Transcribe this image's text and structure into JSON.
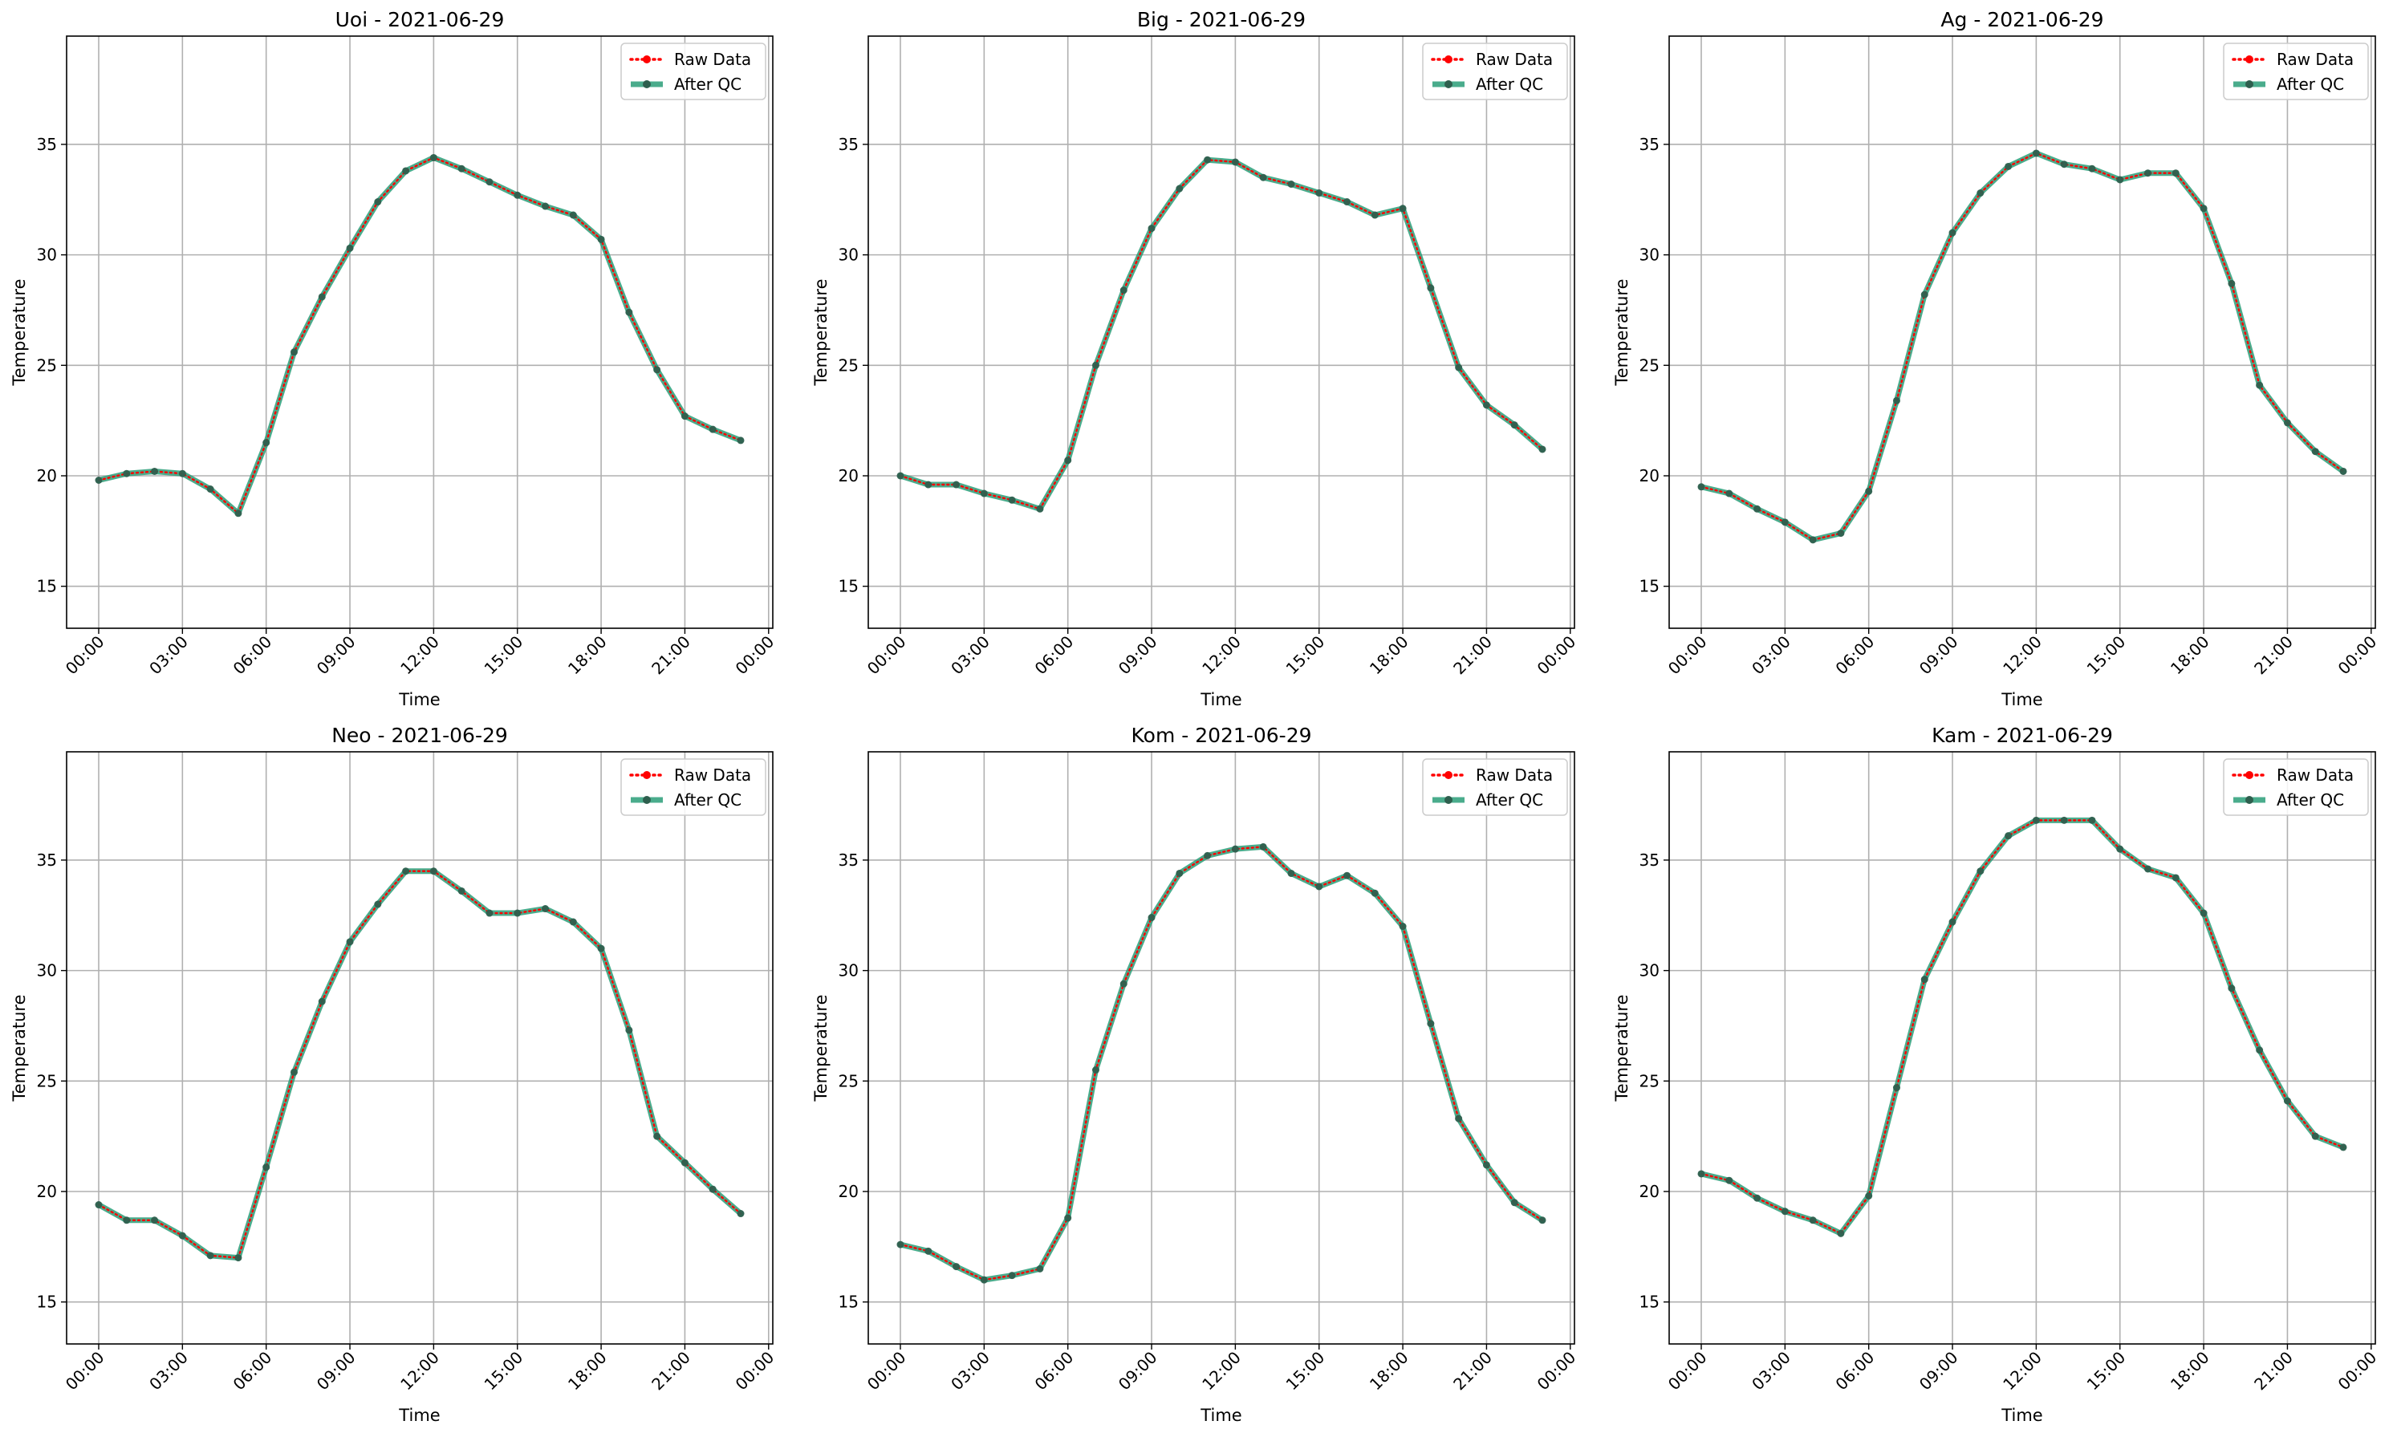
{
  "chart_data": [
    {
      "type": "line",
      "title": "Uoi - 2021-06-29",
      "xlabel": "Time",
      "ylabel": "Temperature",
      "x": [
        "00:00",
        "01:00",
        "02:00",
        "03:00",
        "04:00",
        "05:00",
        "06:00",
        "07:00",
        "08:00",
        "09:00",
        "10:00",
        "11:00",
        "12:00",
        "13:00",
        "14:00",
        "15:00",
        "16:00",
        "17:00",
        "18:00",
        "19:00",
        "20:00",
        "21:00",
        "22:00",
        "23:00"
      ],
      "xticks": [
        "00:00",
        "03:00",
        "06:00",
        "09:00",
        "12:00",
        "15:00",
        "18:00",
        "21:00",
        "00:00"
      ],
      "yticks": [
        "15",
        "20",
        "25",
        "30",
        "35"
      ],
      "ylim": [
        13.1,
        39.9
      ],
      "grid": true,
      "legend_position": "top-right",
      "series": [
        {
          "name": "Raw Data",
          "color": "#ff0000",
          "style": "dotted",
          "values": [
            19.8,
            20.1,
            20.2,
            20.1,
            19.4,
            18.3,
            21.5,
            25.6,
            28.1,
            30.3,
            32.4,
            33.8,
            34.4,
            33.9,
            33.3,
            32.7,
            32.2,
            31.8,
            30.7,
            27.4,
            24.8,
            22.7,
            22.1,
            21.6
          ]
        },
        {
          "name": "After QC",
          "color": "#2a9d78",
          "style": "solid",
          "values": [
            19.8,
            20.1,
            20.2,
            20.1,
            19.4,
            18.3,
            21.5,
            25.6,
            28.1,
            30.3,
            32.4,
            33.8,
            34.4,
            33.9,
            33.3,
            32.7,
            32.2,
            31.8,
            30.7,
            27.4,
            24.8,
            22.7,
            22.1,
            21.6
          ]
        }
      ]
    },
    {
      "type": "line",
      "title": "Big - 2021-06-29",
      "xlabel": "Time",
      "ylabel": "Temperature",
      "x": [
        "00:00",
        "01:00",
        "02:00",
        "03:00",
        "04:00",
        "05:00",
        "06:00",
        "07:00",
        "08:00",
        "09:00",
        "10:00",
        "11:00",
        "12:00",
        "13:00",
        "14:00",
        "15:00",
        "16:00",
        "17:00",
        "18:00",
        "19:00",
        "20:00",
        "21:00",
        "22:00",
        "23:00"
      ],
      "xticks": [
        "00:00",
        "03:00",
        "06:00",
        "09:00",
        "12:00",
        "15:00",
        "18:00",
        "21:00",
        "00:00"
      ],
      "yticks": [
        "15",
        "20",
        "25",
        "30",
        "35"
      ],
      "ylim": [
        13.1,
        39.9
      ],
      "grid": true,
      "legend_position": "top-right",
      "series": [
        {
          "name": "Raw Data",
          "color": "#ff0000",
          "style": "dotted",
          "values": [
            20.0,
            19.6,
            19.6,
            19.2,
            18.9,
            18.5,
            20.7,
            25.0,
            28.4,
            31.2,
            33.0,
            34.3,
            34.2,
            33.5,
            33.2,
            32.8,
            32.4,
            31.8,
            32.1,
            28.5,
            24.9,
            23.2,
            22.3,
            21.2
          ]
        },
        {
          "name": "After QC",
          "color": "#2a9d78",
          "style": "solid",
          "values": [
            20.0,
            19.6,
            19.6,
            19.2,
            18.9,
            18.5,
            20.7,
            25.0,
            28.4,
            31.2,
            33.0,
            34.3,
            34.2,
            33.5,
            33.2,
            32.8,
            32.4,
            31.8,
            32.1,
            28.5,
            24.9,
            23.2,
            22.3,
            21.2
          ]
        }
      ]
    },
    {
      "type": "line",
      "title": "Ag - 2021-06-29",
      "xlabel": "Time",
      "ylabel": "Temperature",
      "x": [
        "00:00",
        "01:00",
        "02:00",
        "03:00",
        "04:00",
        "05:00",
        "06:00",
        "07:00",
        "08:00",
        "09:00",
        "10:00",
        "11:00",
        "12:00",
        "13:00",
        "14:00",
        "15:00",
        "16:00",
        "17:00",
        "18:00",
        "19:00",
        "20:00",
        "21:00",
        "22:00",
        "23:00"
      ],
      "xticks": [
        "00:00",
        "03:00",
        "06:00",
        "09:00",
        "12:00",
        "15:00",
        "18:00",
        "21:00",
        "00:00"
      ],
      "yticks": [
        "15",
        "20",
        "25",
        "30",
        "35"
      ],
      "ylim": [
        13.1,
        39.9
      ],
      "grid": true,
      "legend_position": "top-right",
      "series": [
        {
          "name": "Raw Data",
          "color": "#ff0000",
          "style": "dotted",
          "values": [
            19.5,
            19.2,
            18.5,
            17.9,
            17.1,
            17.4,
            19.3,
            23.4,
            28.2,
            31.0,
            32.8,
            34.0,
            34.6,
            34.1,
            33.9,
            33.4,
            33.7,
            33.7,
            32.1,
            28.7,
            24.1,
            22.4,
            21.1,
            20.2
          ]
        },
        {
          "name": "After QC",
          "color": "#2a9d78",
          "style": "solid",
          "values": [
            19.5,
            19.2,
            18.5,
            17.9,
            17.1,
            17.4,
            19.3,
            23.4,
            28.2,
            31.0,
            32.8,
            34.0,
            34.6,
            34.1,
            33.9,
            33.4,
            33.7,
            33.7,
            32.1,
            28.7,
            24.1,
            22.4,
            21.1,
            20.2
          ]
        }
      ]
    },
    {
      "type": "line",
      "title": "Neo - 2021-06-29",
      "xlabel": "Time",
      "ylabel": "Temperature",
      "x": [
        "00:00",
        "01:00",
        "02:00",
        "03:00",
        "04:00",
        "05:00",
        "06:00",
        "07:00",
        "08:00",
        "09:00",
        "10:00",
        "11:00",
        "12:00",
        "13:00",
        "14:00",
        "15:00",
        "16:00",
        "17:00",
        "18:00",
        "19:00",
        "20:00",
        "21:00",
        "22:00",
        "23:00"
      ],
      "xticks": [
        "00:00",
        "03:00",
        "06:00",
        "09:00",
        "12:00",
        "15:00",
        "18:00",
        "21:00",
        "00:00"
      ],
      "yticks": [
        "15",
        "20",
        "25",
        "30",
        "35"
      ],
      "ylim": [
        13.1,
        39.9
      ],
      "grid": true,
      "legend_position": "top-right",
      "series": [
        {
          "name": "Raw Data",
          "color": "#ff0000",
          "style": "dotted",
          "values": [
            19.4,
            18.7,
            18.7,
            18.0,
            17.1,
            17.0,
            21.1,
            25.4,
            28.6,
            31.3,
            33.0,
            34.5,
            34.5,
            33.6,
            32.6,
            32.6,
            32.8,
            32.2,
            31.0,
            27.3,
            22.5,
            21.3,
            20.1,
            19.0
          ]
        },
        {
          "name": "After QC",
          "color": "#2a9d78",
          "style": "solid",
          "values": [
            19.4,
            18.7,
            18.7,
            18.0,
            17.1,
            17.0,
            21.1,
            25.4,
            28.6,
            31.3,
            33.0,
            34.5,
            34.5,
            33.6,
            32.6,
            32.6,
            32.8,
            32.2,
            31.0,
            27.3,
            22.5,
            21.3,
            20.1,
            19.0
          ]
        }
      ]
    },
    {
      "type": "line",
      "title": "Kom - 2021-06-29",
      "xlabel": "Time",
      "ylabel": "Temperature",
      "x": [
        "00:00",
        "01:00",
        "02:00",
        "03:00",
        "04:00",
        "05:00",
        "06:00",
        "07:00",
        "08:00",
        "09:00",
        "10:00",
        "11:00",
        "12:00",
        "13:00",
        "14:00",
        "15:00",
        "16:00",
        "17:00",
        "18:00",
        "19:00",
        "20:00",
        "21:00",
        "22:00",
        "23:00"
      ],
      "xticks": [
        "00:00",
        "03:00",
        "06:00",
        "09:00",
        "12:00",
        "15:00",
        "18:00",
        "21:00",
        "00:00"
      ],
      "yticks": [
        "15",
        "20",
        "25",
        "30",
        "35"
      ],
      "ylim": [
        13.1,
        39.9
      ],
      "grid": true,
      "legend_position": "top-right",
      "series": [
        {
          "name": "Raw Data",
          "color": "#ff0000",
          "style": "dotted",
          "values": [
            17.6,
            17.3,
            16.6,
            16.0,
            16.2,
            16.5,
            18.8,
            25.5,
            29.4,
            32.4,
            34.4,
            35.2,
            35.5,
            35.6,
            34.4,
            33.8,
            34.3,
            33.5,
            32.0,
            27.6,
            23.3,
            21.2,
            19.5,
            18.7
          ]
        },
        {
          "name": "After QC",
          "color": "#2a9d78",
          "style": "solid",
          "values": [
            17.6,
            17.3,
            16.6,
            16.0,
            16.2,
            16.5,
            18.8,
            25.5,
            29.4,
            32.4,
            34.4,
            35.2,
            35.5,
            35.6,
            34.4,
            33.8,
            34.3,
            33.5,
            32.0,
            27.6,
            23.3,
            21.2,
            19.5,
            18.7
          ]
        }
      ]
    },
    {
      "type": "line",
      "title": "Kam - 2021-06-29",
      "xlabel": "Time",
      "ylabel": "Temperature",
      "x": [
        "00:00",
        "01:00",
        "02:00",
        "03:00",
        "04:00",
        "05:00",
        "06:00",
        "07:00",
        "08:00",
        "09:00",
        "10:00",
        "11:00",
        "12:00",
        "13:00",
        "14:00",
        "15:00",
        "16:00",
        "17:00",
        "18:00",
        "19:00",
        "20:00",
        "21:00",
        "22:00",
        "23:00"
      ],
      "xticks": [
        "00:00",
        "03:00",
        "06:00",
        "09:00",
        "12:00",
        "15:00",
        "18:00",
        "21:00",
        "00:00"
      ],
      "yticks": [
        "15",
        "20",
        "25",
        "30",
        "35"
      ],
      "ylim": [
        13.1,
        39.9
      ],
      "grid": true,
      "legend_position": "top-right",
      "series": [
        {
          "name": "Raw Data",
          "color": "#ff0000",
          "style": "dotted",
          "values": [
            20.8,
            20.5,
            19.7,
            19.1,
            18.7,
            18.1,
            19.8,
            24.7,
            29.6,
            32.2,
            34.5,
            36.1,
            36.8,
            36.8,
            36.8,
            35.5,
            34.6,
            34.2,
            32.6,
            29.2,
            26.4,
            24.1,
            22.5,
            22.0
          ]
        },
        {
          "name": "After QC",
          "color": "#2a9d78",
          "style": "solid",
          "values": [
            20.8,
            20.5,
            19.7,
            19.1,
            18.7,
            18.1,
            19.8,
            24.7,
            29.6,
            32.2,
            34.5,
            36.1,
            36.8,
            36.8,
            36.8,
            35.5,
            34.6,
            34.2,
            32.6,
            29.2,
            26.4,
            24.1,
            22.5,
            22.0
          ]
        }
      ]
    }
  ]
}
